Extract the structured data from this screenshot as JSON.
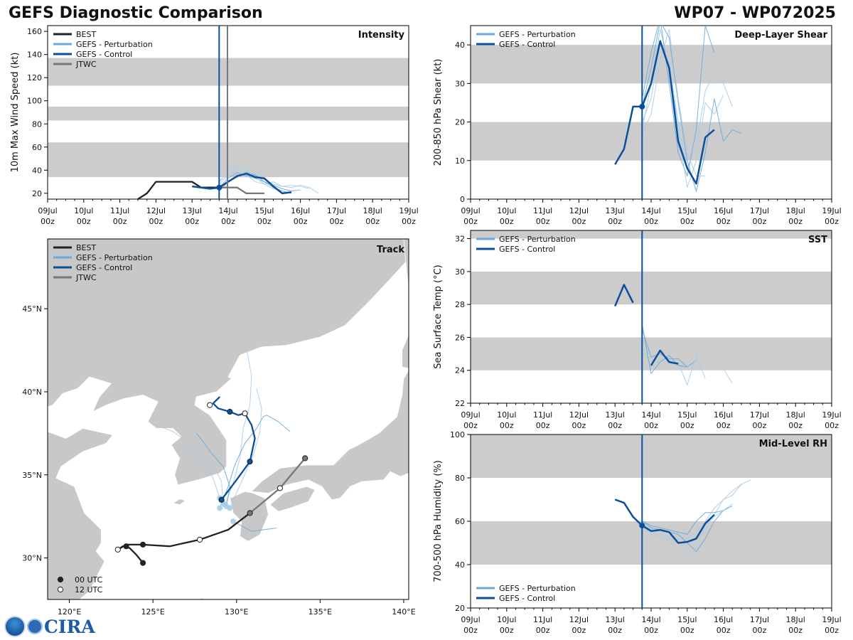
{
  "header": {
    "title": "GEFS Diagnostic Comparison",
    "storm_id": "WP07 - WP072025"
  },
  "logo": {
    "text": "CIRA"
  },
  "colors": {
    "best": "#222222",
    "perturbation": "#6aaad8",
    "perturbation_light": "#a9cde8",
    "control": "#0b4e9c",
    "jtwc": "#777777",
    "band": "#cccccc",
    "land": "#c8c8c8"
  },
  "time_axis": {
    "ticks": [
      "09Jul 00z",
      "10Jul 00z",
      "11Jul 00z",
      "12Jul 00z",
      "13Jul 00z",
      "14Jul 00z",
      "15Jul 00z",
      "16Jul 00z",
      "17Jul 00z",
      "18Jul 00z",
      "19Jul 00z"
    ],
    "range_days": [
      0,
      10
    ],
    "init_day": 4.75,
    "jtwc_day": 4.98
  },
  "chart_data": [
    {
      "id": "intensity",
      "type": "line",
      "label": "Intensity",
      "ylabel": "10m Max Wind Speed (kt)",
      "ylim": [
        15,
        165
      ],
      "yticks": [
        20,
        40,
        60,
        80,
        100,
        120,
        140,
        160
      ],
      "bands": [
        [
          34,
          64
        ],
        [
          83,
          95
        ],
        [
          113,
          137
        ]
      ],
      "legend": [
        "BEST",
        "GEFS - Perturbation",
        "GEFS - Control",
        "JTWC"
      ],
      "series": [
        {
          "name": "BEST",
          "x": [
            2.5,
            2.75,
            3.0,
            3.25,
            3.5,
            3.75,
            4.0,
            4.25,
            4.5,
            4.75
          ],
          "y": [
            15,
            20,
            30,
            30,
            30,
            30,
            30,
            25,
            25,
            25
          ]
        },
        {
          "name": "JTWC",
          "x": [
            4.75,
            5.0,
            5.25,
            5.5,
            5.75,
            6.0
          ],
          "y": [
            25,
            25,
            25,
            20,
            20,
            20
          ]
        },
        {
          "name": "GEFS - Control",
          "x": [
            4.0,
            4.25,
            4.5,
            4.75,
            5.0,
            5.25,
            5.5,
            5.75,
            6.0,
            6.25,
            6.5,
            6.75
          ],
          "y": [
            26,
            25,
            24,
            25,
            30,
            35,
            37,
            34,
            33,
            26,
            20,
            21
          ]
        },
        {
          "name": "GEFS - Perturbation",
          "x": [
            4.75,
            5.0,
            5.25,
            5.5,
            5.75,
            6.0,
            6.25,
            6.5,
            6.75,
            7.0,
            7.25
          ],
          "y": [
            30,
            36,
            40,
            38,
            35,
            32,
            28,
            26,
            27,
            26,
            24
          ]
        },
        {
          "name": "GEFS - Perturbation",
          "x": [
            4.75,
            5.0,
            5.25,
            5.5,
            5.75,
            6.0,
            6.25,
            6.5,
            6.75,
            7.0
          ],
          "y": [
            25,
            33,
            38,
            35,
            33,
            30,
            27,
            24,
            22,
            23
          ]
        },
        {
          "name": "GEFS - Perturbation",
          "x": [
            4.75,
            5.0,
            5.25,
            5.5,
            5.75,
            6.0,
            6.25,
            6.5,
            6.75,
            7.0,
            7.25,
            7.5
          ],
          "y": [
            28,
            35,
            42,
            36,
            30,
            28,
            30,
            26,
            25,
            27,
            25,
            20
          ]
        },
        {
          "name": "GEFS - Perturbation",
          "x": [
            4.75,
            5.0,
            5.25,
            5.5,
            5.75,
            6.0,
            6.25,
            6.5,
            6.75
          ],
          "y": [
            22,
            30,
            34,
            38,
            36,
            30,
            25,
            22,
            20
          ]
        },
        {
          "name": "GEFS - Perturbation",
          "x": [
            4.75,
            5.0,
            5.25,
            5.5,
            5.75,
            6.0,
            6.25,
            6.5
          ],
          "y": [
            30,
            40,
            44,
            40,
            34,
            28,
            24,
            22
          ]
        }
      ]
    },
    {
      "id": "shear",
      "type": "line",
      "label": "Deep-Layer Shear",
      "ylabel": "200-850 hPa Shear (kt)",
      "ylim": [
        0,
        45
      ],
      "yticks": [
        0,
        10,
        20,
        30,
        40
      ],
      "bands": [
        [
          10,
          20
        ],
        [
          30,
          40
        ]
      ],
      "legend": [
        "GEFS - Perturbation",
        "GEFS - Control"
      ],
      "series": [
        {
          "name": "GEFS - Control",
          "x": [
            4.0,
            4.25,
            4.5,
            4.75,
            5.0,
            5.25,
            5.5,
            5.75,
            6.0,
            6.25,
            6.5,
            6.75
          ],
          "y": [
            9,
            13,
            24,
            24,
            30,
            41,
            34,
            15,
            8,
            4,
            16,
            18
          ]
        },
        {
          "name": "GEFS - Perturbation",
          "x": [
            4.75,
            5.0,
            5.25,
            5.5,
            5.75,
            6.0,
            6.25,
            6.5,
            6.75,
            7.0,
            7.25
          ],
          "y": [
            18,
            30,
            44,
            35,
            20,
            8,
            14,
            28,
            33,
            30,
            24
          ]
        },
        {
          "name": "GEFS - Perturbation",
          "x": [
            4.75,
            5.0,
            5.25,
            5.5,
            5.75,
            6.0,
            6.25,
            6.5,
            6.75
          ],
          "y": [
            26,
            38,
            47,
            30,
            12,
            6,
            18,
            45,
            38
          ]
        },
        {
          "name": "GEFS - Perturbation",
          "x": [
            4.75,
            5.0,
            5.25,
            5.5,
            5.75,
            6.0,
            6.25,
            6.5,
            6.75,
            7.0
          ],
          "y": [
            20,
            26,
            40,
            36,
            18,
            3,
            10,
            25,
            22,
            27
          ]
        },
        {
          "name": "GEFS - Perturbation",
          "x": [
            4.75,
            5.0,
            5.25,
            5.5,
            5.75,
            6.0,
            6.25,
            6.5,
            6.75,
            7.0,
            7.25,
            7.5
          ],
          "y": [
            24,
            34,
            46,
            42,
            25,
            10,
            2,
            12,
            26,
            15,
            18,
            17
          ]
        },
        {
          "name": "GEFS - Perturbation",
          "x": [
            4.75,
            5.0,
            5.25,
            5.5,
            5.75,
            6.0,
            6.25,
            6.5
          ],
          "y": [
            17,
            22,
            36,
            44,
            26,
            12,
            6,
            6
          ]
        }
      ]
    },
    {
      "id": "sst",
      "type": "line",
      "label": "SST",
      "ylabel": "Sea Surface Temp (°C)",
      "ylim": [
        22,
        32.5
      ],
      "yticks": [
        22,
        24,
        26,
        28,
        30,
        32
      ],
      "bands": [
        [
          24,
          26
        ],
        [
          28,
          30
        ],
        [
          32,
          32.5
        ]
      ],
      "legend": [
        "GEFS - Perturbation",
        "GEFS - Control"
      ],
      "series": [
        {
          "name": "GEFS - Control",
          "x": [
            4.0,
            4.25,
            4.5
          ],
          "y": [
            27.9,
            29.2,
            28.1
          ]
        },
        {
          "name": "GEFS - Control",
          "x": [
            5.0,
            5.25,
            5.5,
            5.75
          ],
          "y": [
            24.3,
            25.2,
            24.5,
            24.4
          ]
        },
        {
          "name": "GEFS - Perturbation",
          "x": [
            4.75,
            5.0,
            5.25,
            5.5,
            5.75,
            6.0,
            6.25
          ],
          "y": [
            26.5,
            24.8,
            25.0,
            24.7,
            24.7,
            24.2,
            24.6
          ]
        },
        {
          "name": "GEFS - Perturbation",
          "x": [
            4.75,
            5.0,
            5.25,
            5.5,
            5.75,
            6.0,
            6.25,
            6.5
          ],
          "y": [
            25.5,
            24.2,
            24.6,
            24.3,
            24.5,
            23.1,
            24.9,
            23.5
          ]
        },
        {
          "name": "GEFS - Perturbation",
          "x": [
            4.75,
            5.0,
            5.25,
            5.5,
            5.75,
            6.0
          ],
          "y": [
            26.8,
            23.8,
            24.5,
            24.9,
            24.3,
            24.2
          ]
        },
        {
          "name": "GEFS - Perturbation",
          "x": [
            7.0,
            7.25
          ],
          "y": [
            24.1,
            23.2
          ]
        }
      ]
    },
    {
      "id": "rh",
      "type": "line",
      "label": "Mid-Level RH",
      "ylabel": "700-500 hPa Humidity (%)",
      "ylim": [
        20,
        100
      ],
      "yticks": [
        20,
        40,
        60,
        80,
        100
      ],
      "bands": [
        [
          40,
          60
        ],
        [
          80,
          100
        ]
      ],
      "legend": [
        "GEFS - Perturbation",
        "GEFS - Control"
      ],
      "series": [
        {
          "name": "GEFS - Control",
          "x": [
            4.0,
            4.25,
            4.5,
            4.75,
            5.0,
            5.25,
            5.5,
            5.75,
            6.0,
            6.25,
            6.5,
            6.75
          ],
          "y": [
            70,
            68.5,
            62,
            58,
            55.5,
            56,
            55,
            50,
            50.5,
            52,
            59,
            63
          ]
        },
        {
          "name": "GEFS - Perturbation",
          "x": [
            4.75,
            5.0,
            5.25,
            5.5,
            5.75,
            6.0,
            6.25,
            6.5,
            6.75,
            7.0,
            7.25,
            7.5,
            7.75
          ],
          "y": [
            59,
            56,
            54,
            53,
            52,
            52,
            55,
            60,
            66,
            70,
            74,
            77,
            79
          ]
        },
        {
          "name": "GEFS - Perturbation",
          "x": [
            4.75,
            5.0,
            5.25,
            5.5,
            5.75,
            6.0,
            6.25,
            6.5,
            6.75,
            7.0,
            7.25
          ],
          "y": [
            60,
            57,
            56,
            55,
            54,
            50,
            46,
            52,
            60,
            65,
            67
          ]
        },
        {
          "name": "GEFS - Perturbation",
          "x": [
            4.75,
            5.0,
            5.25,
            5.5,
            5.75,
            6.0,
            6.25,
            6.5,
            6.75,
            7.0,
            7.25,
            7.5
          ],
          "y": [
            58,
            54,
            53,
            51,
            47,
            42,
            48,
            58,
            63,
            70,
            72,
            77
          ]
        },
        {
          "name": "GEFS - Perturbation",
          "x": [
            4.75,
            5.0,
            5.25,
            5.5,
            5.75,
            6.0,
            6.25,
            6.5,
            6.75,
            7.0
          ],
          "y": [
            60,
            58,
            57,
            56,
            55,
            54,
            60,
            64,
            64,
            65
          ]
        },
        {
          "name": "GEFS - Perturbation",
          "x": [
            4.75,
            5.0,
            5.25,
            5.5,
            5.75,
            6.0,
            6.25,
            6.5,
            6.75,
            7.0,
            7.25
          ],
          "y": [
            57,
            55,
            53,
            52,
            50,
            48,
            52,
            58,
            62,
            65,
            68
          ]
        }
      ]
    },
    {
      "id": "track",
      "type": "line",
      "label": "Track",
      "xlabel_ticks": [
        "120°E",
        "125°E",
        "130°E",
        "135°E",
        "140°E"
      ],
      "ylabel_ticks": [
        "30°N",
        "35°N",
        "40°N",
        "45°N"
      ],
      "lon_range": [
        118.7,
        140.3
      ],
      "lat_range": [
        27.5,
        49.2
      ],
      "legend": [
        "BEST",
        "GEFS - Perturbation",
        "GEFS - Control",
        "JTWC"
      ],
      "marker_legend": [
        "00 UTC",
        "12 UTC"
      ],
      "series": [
        {
          "name": "BEST",
          "lon": [
            124.4,
            124.0,
            123.6,
            123.2,
            122.9,
            123.4,
            124.4,
            126.0,
            127.8,
            129.5,
            130.8
          ],
          "lat": [
            29.7,
            30.2,
            30.6,
            30.7,
            30.5,
            30.8,
            30.8,
            30.7,
            31.1,
            31.7,
            32.7
          ],
          "markers": [
            {
              "lon": 124.4,
              "lat": 29.7,
              "t": "00"
            },
            {
              "lon": 123.4,
              "lat": 30.7,
              "t": "00"
            },
            {
              "lon": 124.4,
              "lat": 30.8,
              "t": "00"
            },
            {
              "lon": 122.9,
              "lat": 30.5,
              "t": "12"
            },
            {
              "lon": 127.8,
              "lat": 31.1,
              "t": "12"
            }
          ]
        },
        {
          "name": "JTWC",
          "lon": [
            130.8,
            132.6,
            134.1
          ],
          "lat": [
            32.7,
            34.2,
            36.0
          ],
          "markers": [
            {
              "lon": 130.8,
              "lat": 32.7,
              "t": "00"
            },
            {
              "lon": 132.6,
              "lat": 34.2,
              "t": "12"
            },
            {
              "lon": 134.1,
              "lat": 36.0,
              "t": "00"
            }
          ]
        },
        {
          "name": "GEFS - Control",
          "lon": [
            129.1,
            130.0,
            130.8,
            131.1,
            130.9,
            130.5,
            130.1,
            129.6,
            128.9,
            128.6,
            129.0
          ],
          "lat": [
            33.5,
            34.7,
            35.8,
            37.2,
            38.0,
            38.7,
            38.6,
            38.8,
            39.0,
            39.3,
            39.7
          ],
          "markers": [
            {
              "lon": 129.1,
              "lat": 33.5,
              "t": "00"
            },
            {
              "lon": 130.8,
              "lat": 35.8,
              "t": "00"
            },
            {
              "lon": 129.6,
              "lat": 38.8,
              "t": "00"
            },
            {
              "lon": 128.4,
              "lat": 39.2,
              "t": "12"
            },
            {
              "lon": 130.5,
              "lat": 38.7,
              "t": "12"
            }
          ]
        },
        {
          "name": "GEFS - Perturbation",
          "lon": [
            129.3,
            129.8,
            130.2,
            130.4,
            130.8,
            130.9,
            130.6,
            130.0
          ],
          "lat": [
            33.2,
            34.5,
            36.0,
            37.8,
            39.2,
            41.0,
            42.5,
            44.2
          ]
        },
        {
          "name": "GEFS - Perturbation",
          "lon": [
            129.0,
            129.5,
            129.9,
            130.5,
            131.2,
            131.6,
            131.8,
            132.5,
            133.2
          ],
          "lat": [
            33.0,
            34.3,
            35.6,
            36.9,
            37.8,
            38.5,
            38.6,
            38.2,
            37.6
          ]
        },
        {
          "name": "GEFS - Perturbation",
          "lon": [
            129.2,
            129.1,
            128.5,
            127.5,
            126.2,
            125.2,
            124.8
          ],
          "lat": [
            33.3,
            34.6,
            35.8,
            36.7,
            37.6,
            38.0,
            38.2
          ]
        },
        {
          "name": "GEFS - Perturbation",
          "lon": [
            129.4,
            129.6,
            129.2,
            128.5,
            128.0,
            127.6
          ],
          "lat": [
            33.1,
            34.3,
            35.5,
            36.3,
            37.0,
            37.5
          ]
        },
        {
          "name": "GEFS - Perturbation",
          "lon": [
            129.6,
            130.3,
            131.0,
            131.4,
            131.5,
            131.2
          ],
          "lat": [
            33.0,
            34.6,
            36.2,
            37.6,
            39.0,
            40.2
          ]
        },
        {
          "name": "GEFS - Perturbation",
          "lon": [
            129.8,
            130.9,
            132.4
          ],
          "lat": [
            32.2,
            31.6,
            31.8
          ]
        },
        {
          "name": "GEFS - Perturbation",
          "lon": [
            129.0,
            128.6,
            128.0,
            127.3,
            126.7
          ],
          "lat": [
            33.6,
            34.8,
            35.8,
            36.5,
            36.0
          ]
        }
      ]
    }
  ]
}
